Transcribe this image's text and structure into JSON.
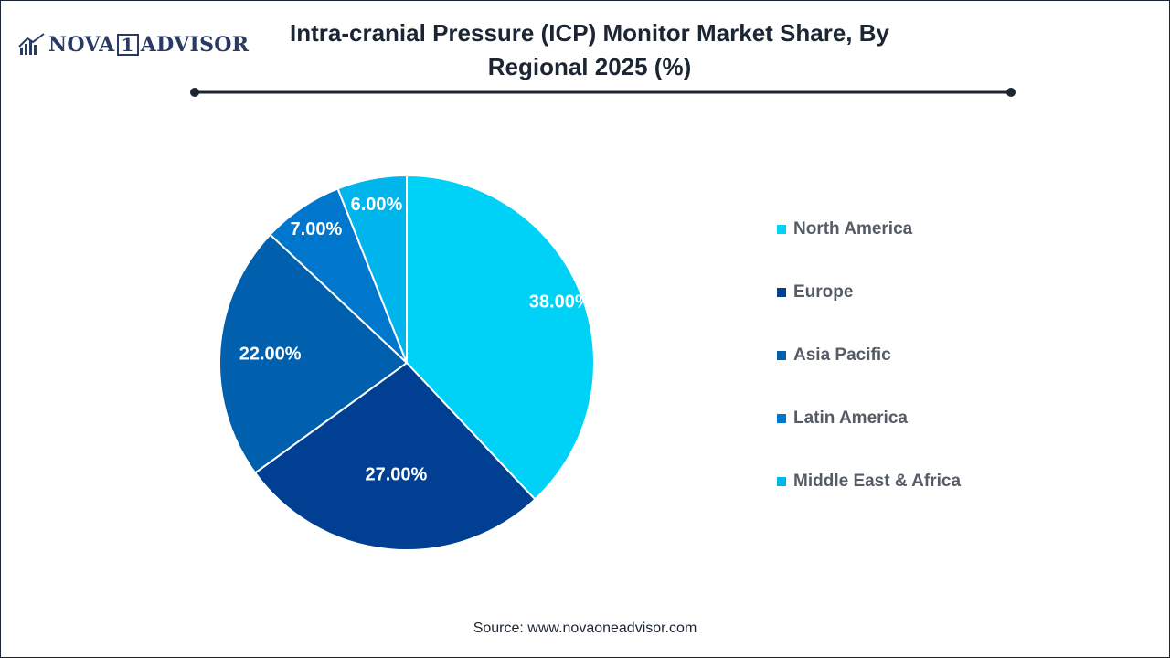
{
  "brand": {
    "name_part1": "NOVA",
    "name_part2": "1",
    "name_part3": "ADVISOR"
  },
  "header": {
    "title": "Intra-cranial Pressure (ICP) Monitor Market Share, By Regional 2025 (%)"
  },
  "footer": {
    "source": "Source: www.novaoneadvisor.com"
  },
  "colors": {
    "accent": "#1b2533"
  },
  "chart_data": {
    "type": "pie",
    "title": "Intra-cranial Pressure (ICP) Monitor Market Share, By Regional 2025 (%)",
    "categories": [
      "North America",
      "Europe",
      "Asia Pacific",
      "Latin America",
      "Middle East & Africa"
    ],
    "values": [
      38.0,
      27.0,
      22.0,
      7.0,
      6.0
    ],
    "labels": [
      "38.00%",
      "27.00%",
      "22.00%",
      "7.00%",
      "6.00%"
    ],
    "colors": [
      "#00d2f7",
      "#003f91",
      "#0060ad",
      "#0077cc",
      "#00b4ec"
    ],
    "legend_position": "right"
  }
}
